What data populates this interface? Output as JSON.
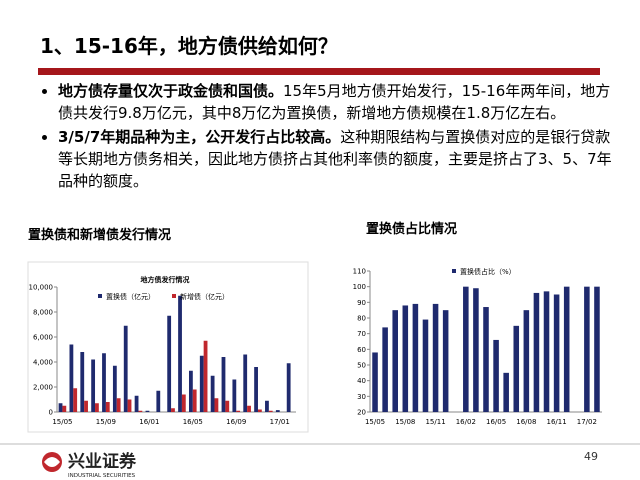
{
  "header": {
    "title": "1、15-16年，地方债供给如何？"
  },
  "bullets": [
    {
      "bold": "地方债存量仅次于政金债和国债。",
      "text": "15年5月地方债开始发行，15-16年两年间，地方债共发行9.8万亿元，其中8万亿为置换债，新增地方债规模在1.8万亿左右。"
    },
    {
      "bold": "3/5/7年期品种为主，公开发行占比较高。",
      "text": "这种期限结构与置换债对应的是银行贷款等长期地方债务相关，因此地方债挤占其他利率债的额度，主要是挤占了3、5、7年品种的额度。"
    }
  ],
  "chart_data": [
    {
      "type": "bar",
      "title": "置换债和新增债发行情况",
      "subtitle": "地方债发行情况",
      "categories": [
        "15/05",
        null,
        null,
        null,
        "15/09",
        null,
        null,
        null,
        "16/01",
        null,
        null,
        null,
        "16/05",
        null,
        null,
        null,
        "16/09",
        null,
        null,
        null,
        "17/01",
        null
      ],
      "series": [
        {
          "name": "置换债（亿元）",
          "color": "#1f2a6e",
          "values": [
            700,
            5400,
            4800,
            4200,
            4700,
            3700,
            6900,
            1300,
            100,
            1700,
            7700,
            9300,
            3300,
            4500,
            2900,
            4400,
            2600,
            4600,
            3600,
            900,
            150,
            3900
          ]
        },
        {
          "name": "新增债（亿元）",
          "color": "#c0272d",
          "values": [
            500,
            1900,
            900,
            700,
            800,
            1100,
            1000,
            100,
            0,
            0,
            300,
            1400,
            1800,
            5700,
            1100,
            900,
            100,
            500,
            200,
            100,
            0,
            0
          ]
        }
      ],
      "ylim": [
        0,
        10000
      ],
      "yticks": [
        0,
        {
          "value": 2000,
          "label": "2,000"
        },
        {
          "value": 4000,
          "label": "4,000"
        },
        {
          "value": 6000,
          "label": "6,000"
        },
        {
          "value": 8000,
          "label": "8,000"
        },
        {
          "value": 10000,
          "label": "10,000"
        }
      ]
    },
    {
      "type": "bar",
      "title": "置换债占比情况",
      "categories": [
        "15/05",
        null,
        null,
        "15/08",
        null,
        null,
        "15/11",
        null,
        null,
        "16/02",
        null,
        null,
        "16/05",
        null,
        null,
        "16/08",
        null,
        null,
        "16/11",
        null,
        null,
        "17/02",
        null
      ],
      "series": [
        {
          "name": "置换债占比（%）",
          "color": "#1f2a6e",
          "values": [
            58,
            74,
            85,
            88,
            89,
            79,
            89,
            85,
            null,
            100,
            99,
            87,
            66,
            45,
            75,
            85,
            96,
            97,
            95,
            100,
            null,
            100,
            100
          ]
        }
      ],
      "ylim": [
        20,
        110
      ],
      "yticks": [
        20,
        30,
        40,
        50,
        60,
        70,
        80,
        90,
        100,
        110
      ]
    }
  ],
  "footer": {
    "logo": "兴业证券",
    "logo_en": "INDUSTRIAL SECURITIES",
    "page": "49"
  }
}
